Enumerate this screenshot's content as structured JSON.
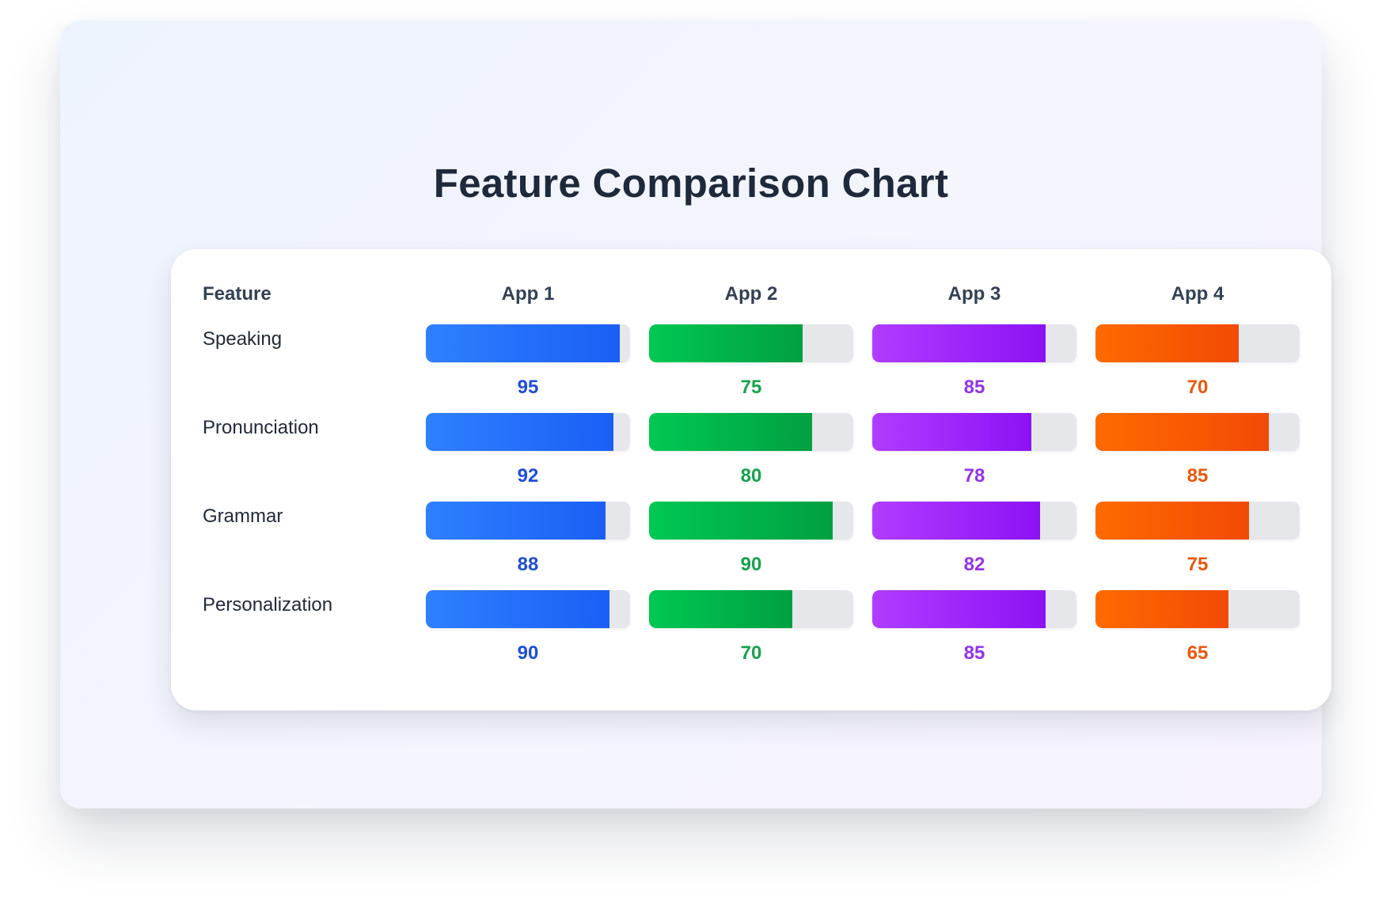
{
  "chart_data": {
    "type": "table",
    "title": "Feature Comparison Chart",
    "feature_header": "Feature",
    "categories": [
      "Speaking",
      "Pronunciation",
      "Grammar",
      "Personalization"
    ],
    "ylim": [
      0,
      100
    ],
    "series": [
      {
        "name": "App 1",
        "values": [
          95,
          92,
          88,
          90
        ],
        "color_start": "#2f80ff",
        "color_end": "#1a5ff5",
        "label_color": "#1d4ed8"
      },
      {
        "name": "App 2",
        "values": [
          75,
          80,
          90,
          70
        ],
        "color_start": "#00c853",
        "color_end": "#00a040",
        "label_color": "#16a34a"
      },
      {
        "name": "App 3",
        "values": [
          85,
          78,
          82,
          85
        ],
        "color_start": "#b03cff",
        "color_end": "#8c12f5",
        "label_color": "#9333ea"
      },
      {
        "name": "App 4",
        "values": [
          70,
          85,
          75,
          65
        ],
        "color_start": "#ff6a00",
        "color_end": "#f24a05",
        "label_color": "#ea580c"
      }
    ],
    "track_color": "#e5e7eb",
    "grid": false,
    "legend": "none"
  }
}
